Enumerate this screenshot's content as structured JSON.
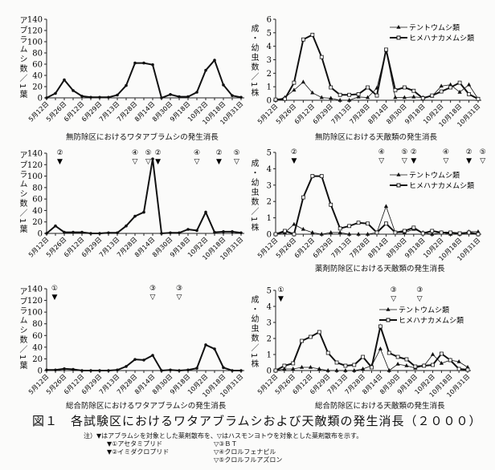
{
  "figure_title": "図１　各試験区におけるワタアブラムシおよび天敵類の発生消長（２０００）",
  "notes": {
    "main": "注）▼はアブラムシを対象とした薬剤散布を、▽はハスモンヨトウを対象とした薬剤散布を示す。",
    "items": [
      "▼①アセタミプリド",
      "▼②イミダクロプリド",
      "▽③ＢＴ",
      "▽④クロルフェナピル",
      "▽⑤クロルフルアズロン"
    ]
  },
  "x_labels": [
    "5月12日",
    "5月26日",
    "6月12日",
    "6月29日",
    "7月13日",
    "7月28日",
    "8月14日",
    "8月30日",
    "9月18日",
    "10月2日",
    "10月18日",
    "10月31日"
  ],
  "legend": [
    "テントウムシ類",
    "ヒメハナカメムシ類"
  ],
  "ylabels": {
    "aphid": "アブラムシ数／1葉",
    "enemy": "成・幼虫数／1株"
  },
  "chart_data": [
    {
      "type": "line",
      "title": "無防除区におけるワタアブラムシの発生消長",
      "ylabel": "アブラムシ数／1葉",
      "ylim": [
        0,
        140
      ],
      "yticks": [
        0,
        20,
        40,
        60,
        80,
        100,
        120,
        140
      ],
      "series": [
        {
          "name": "ワタアブラムシ",
          "values": [
            0,
            8,
            32,
            13,
            3,
            1,
            1,
            1,
            5,
            22,
            62,
            62,
            59,
            0,
            6,
            2,
            2,
            10,
            49,
            67,
            23,
            4,
            1
          ]
        }
      ],
      "sprays": []
    },
    {
      "type": "line",
      "title": "無防除区における天敵類の発生消長",
      "ylabel": "成・幼虫数／1株",
      "ylim": [
        0,
        6
      ],
      "yticks": [
        0,
        1,
        2,
        3,
        4,
        5,
        6
      ],
      "legend": "top-right",
      "series": [
        {
          "name": "テントウムシ類",
          "values": [
            0,
            0.2,
            0.75,
            1.35,
            0.55,
            0.2,
            0.15,
            0,
            0,
            0.25,
            0.2,
            0.9,
            3.7,
            0.2,
            0.2,
            0.25,
            0.2,
            0.3,
            1.05,
            1.15,
            0.6,
            1.15,
            0.1
          ]
        },
        {
          "name": "ヒメハナカメムシ類",
          "values": [
            0.05,
            0.1,
            1.3,
            4.5,
            4.85,
            3.2,
            0.95,
            0.4,
            0.4,
            0.45,
            0.95,
            0.35,
            3.75,
            0.75,
            0.95,
            0.7,
            0.15,
            0.35,
            0.65,
            0.95,
            1.3,
            0.45,
            0.1
          ]
        }
      ],
      "sprays": []
    },
    {
      "type": "line",
      "title": "",
      "ylabel": "アブラムシ数／1葉",
      "ylim": [
        0,
        140
      ],
      "yticks": [
        0,
        20,
        40,
        60,
        80,
        100,
        120,
        140
      ],
      "series": [
        {
          "name": "ワタアブラムシ",
          "values": [
            0,
            13,
            2,
            2,
            2,
            0,
            0,
            1,
            1,
            13,
            30,
            37,
            130,
            0,
            1,
            1,
            7,
            5,
            37,
            2,
            3,
            3,
            1
          ]
        }
      ],
      "sprays": [
        {
          "x": 1.5,
          "mark": "▼",
          "label": "②"
        },
        {
          "x": 10,
          "mark": "▽",
          "label": "④"
        },
        {
          "x": 11.5,
          "mark": "▽",
          "label": "⑤"
        },
        {
          "x": 12.6,
          "mark": "▼",
          "label": "②"
        },
        {
          "x": 17,
          "mark": "▽",
          "label": "④"
        },
        {
          "x": 19.5,
          "mark": "▼",
          "label": "②"
        },
        {
          "x": 21.5,
          "mark": "▽",
          "label": "⑤"
        }
      ]
    },
    {
      "type": "line",
      "title": "薬剤防除区における天敵類の発生消長",
      "ylabel": "成・幼虫数／1株",
      "ylim": [
        0,
        5
      ],
      "yticks": [
        0,
        1,
        2,
        3,
        4,
        5
      ],
      "legend": "top-right",
      "series": [
        {
          "name": "テントウムシ類",
          "values": [
            0,
            0.1,
            0.6,
            0.3,
            0.1,
            0,
            0.1,
            0.1,
            0,
            0,
            0,
            0.1,
            1.7,
            0.1,
            0.1,
            0.3,
            0.1,
            0,
            0.1,
            0,
            0,
            0.15,
            0.15
          ]
        },
        {
          "name": "ヒメハナカメムシ類",
          "values": [
            0,
            0.2,
            0,
            2.25,
            3.55,
            3.55,
            1.8,
            0.35,
            0.5,
            0.7,
            0.65,
            0.1,
            0.65,
            0.1,
            0.2,
            0.4,
            0.05,
            0.2,
            0.1,
            0.1,
            0.05,
            0.1,
            0
          ]
        }
      ],
      "sprays": [
        {
          "x": 2,
          "mark": "▼",
          "label": "②"
        },
        {
          "x": 11.5,
          "mark": "▽",
          "label": "④"
        },
        {
          "x": 14,
          "mark": "▽",
          "label": "⑤"
        },
        {
          "x": 15,
          "mark": "▼",
          "label": "②"
        },
        {
          "x": 18.5,
          "mark": "▽",
          "label": "④"
        },
        {
          "x": 21,
          "mark": "▼",
          "label": "②"
        },
        {
          "x": 22.5,
          "mark": "▽",
          "label": "⑤"
        }
      ]
    },
    {
      "type": "line",
      "title": "総合防除区におけるワタアブラムシの発生消長",
      "ylabel": "アブラムシ数／1葉",
      "ylim": [
        0,
        140
      ],
      "yticks": [
        0,
        20,
        40,
        60,
        80,
        100,
        120,
        140
      ],
      "series": [
        {
          "name": "ワタアブラムシ",
          "values": [
            1,
            1,
            3,
            2,
            0,
            0,
            0,
            0,
            1,
            7,
            19,
            18,
            26,
            0,
            1,
            0,
            1,
            4,
            44,
            37,
            5,
            0,
            0
          ]
        }
      ],
      "sprays": [
        {
          "x": 0.9,
          "mark": "▼",
          "label": "①"
        },
        {
          "x": 12,
          "mark": "▽",
          "label": "③"
        },
        {
          "x": 15,
          "mark": "▽",
          "label": "③"
        }
      ]
    },
    {
      "type": "line",
      "title": "総合防除区における天敵類の発生消長",
      "ylabel": "成・幼虫数／1株",
      "ylim": [
        0,
        5
      ],
      "yticks": [
        0,
        1,
        2,
        3,
        4,
        5
      ],
      "legend": "top-right",
      "series": [
        {
          "name": "テントウムシ類",
          "values": [
            0,
            0.1,
            0.1,
            0.2,
            0.2,
            0.1,
            0,
            0,
            0,
            0,
            0.1,
            0.3,
            1.35,
            0,
            0.4,
            0.3,
            0.15,
            0.3,
            1.0,
            0.45,
            0.65,
            0.55,
            0.2
          ]
        },
        {
          "name": "ヒメハナカメムシ類",
          "values": [
            0,
            0.3,
            0.45,
            1.85,
            2.1,
            2.4,
            1.1,
            0.5,
            0.3,
            0.35,
            0.85,
            0.2,
            2.75,
            1.1,
            0.85,
            0.7,
            0.25,
            0.3,
            0.35,
            1.05,
            0.65,
            0.1,
            0.05
          ]
        }
      ],
      "sprays": [
        {
          "x": 0.6,
          "mark": "▼",
          "label": "①"
        },
        {
          "x": 13.5,
          "mark": "▽",
          "label": "③"
        },
        {
          "x": 16.5,
          "mark": "▽",
          "label": "③"
        }
      ]
    }
  ]
}
